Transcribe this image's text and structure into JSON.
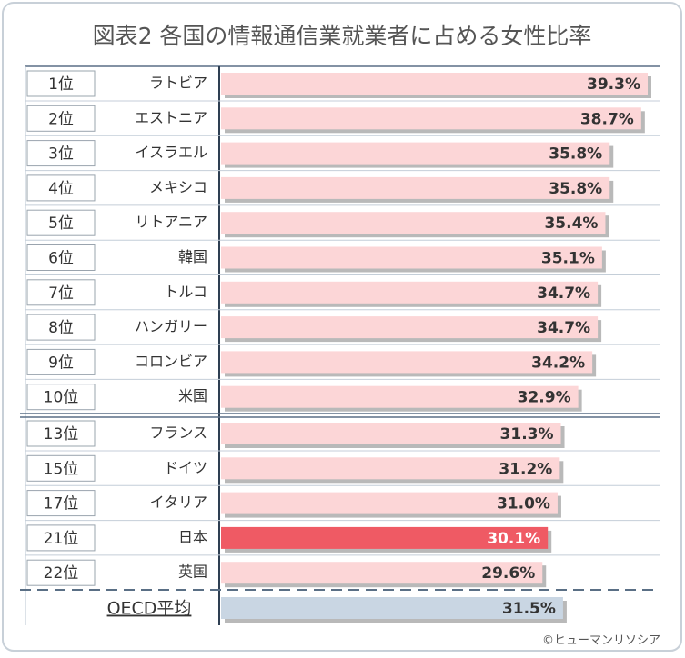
{
  "chart_data": {
    "type": "bar",
    "orientation": "horizontal",
    "title": "図表2  各国の情報通信業就業者に占める女性比率",
    "ranks": [
      "1位",
      "2位",
      "3位",
      "4位",
      "5位",
      "6位",
      "7位",
      "8位",
      "9位",
      "10位",
      "13位",
      "15位",
      "17位",
      "21位",
      "22位",
      null
    ],
    "categories": [
      "ラトビア",
      "エストニア",
      "イスラエル",
      "メキシコ",
      "リトアニア",
      "韓国",
      "トルコ",
      "ハンガリー",
      "コロンビア",
      "米国",
      "フランス",
      "ドイツ",
      "イタリア",
      "日本",
      "英国",
      "OECD平均"
    ],
    "values": [
      39.3,
      38.7,
      35.8,
      35.8,
      35.4,
      35.1,
      34.7,
      34.7,
      34.2,
      32.9,
      31.3,
      31.2,
      31.0,
      30.1,
      29.6,
      31.5
    ],
    "value_labels": [
      "39.3%",
      "38.7%",
      "35.8%",
      "35.8%",
      "35.4%",
      "35.1%",
      "34.7%",
      "34.7%",
      "34.2%",
      "32.9%",
      "31.3%",
      "31.2%",
      "31.0%",
      "30.1%",
      "29.6%",
      "31.5%"
    ],
    "colors": [
      "#fcd6d7",
      "#fcd6d7",
      "#fcd6d7",
      "#fcd6d7",
      "#fcd6d7",
      "#fcd6d7",
      "#fcd6d7",
      "#fcd6d7",
      "#fcd6d7",
      "#fcd6d7",
      "#fcd6d7",
      "#fcd6d7",
      "#fcd6d7",
      "#ef5a64",
      "#fcd6d7",
      "#c9d6e3"
    ],
    "source": "©ヒューマンリソシア"
  }
}
